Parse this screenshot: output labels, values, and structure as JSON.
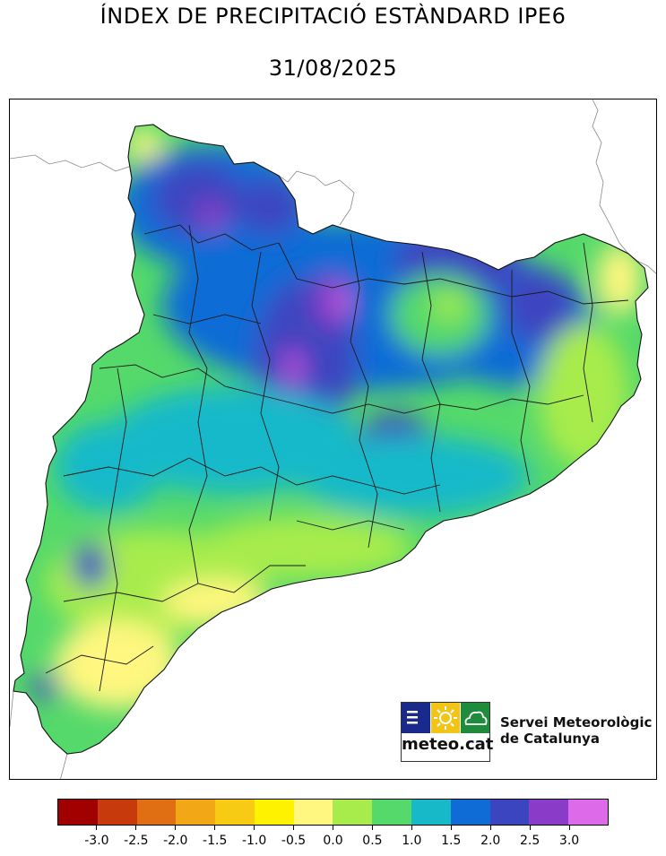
{
  "header": {
    "title": "ÍNDEX DE PRECIPITACIÓ ESTÀNDARD IPE6",
    "date": "31/08/2025"
  },
  "branding": {
    "logo_text": "meteo.cat",
    "agency_line1": "Servei Meteorològic",
    "agency_line2": "de Catalunya",
    "logo_colors": [
      "#1a2a8c",
      "#f2c418",
      "#1e8c3c"
    ]
  },
  "legend": {
    "colors": [
      "#a10000",
      "#c63a0c",
      "#e06e12",
      "#f2a716",
      "#f7cb14",
      "#fff200",
      "#fff77f",
      "#a8ec4c",
      "#55d96a",
      "#17b9c9",
      "#0f6cd6",
      "#3c45c0",
      "#8a3cc8",
      "#dd6ae8"
    ],
    "tick_labels": [
      "-3.0",
      "-2.5",
      "-2.0",
      "-1.5",
      "-1.0",
      "-0.5",
      "0.0",
      "0.5",
      "1.0",
      "1.5",
      "2.0",
      "2.5",
      "3.0"
    ]
  }
}
